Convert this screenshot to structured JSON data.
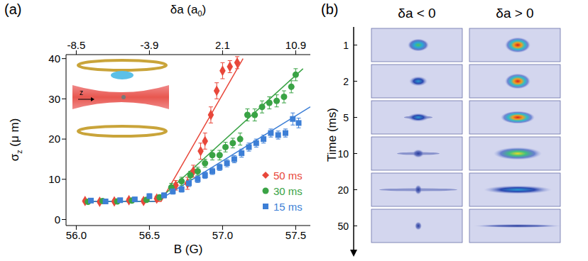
{
  "chart_data": {
    "type": "scatter",
    "panel_label": "(a)",
    "x_label": "B (G)",
    "y_label": [
      "σ",
      "z",
      " (μ m)"
    ],
    "x2_label": [
      "δa (a",
      "0",
      ")"
    ],
    "xlim": [
      55.93,
      57.6
    ],
    "xticks": [
      {
        "value": 56,
        "label": "56.0"
      },
      {
        "value": 56.5,
        "label": "56.5"
      },
      {
        "value": 57,
        "label": "57.0"
      },
      {
        "value": 57.5,
        "label": "57.5"
      }
    ],
    "x2lim": [
      55.93,
      57.6
    ],
    "x2ticks": [
      {
        "value": 56,
        "label": "-8.5"
      },
      {
        "value": 56.5,
        "label": "-3.9"
      },
      {
        "value": 57,
        "label": "2.1"
      },
      {
        "value": 57.5,
        "label": "10.9"
      }
    ],
    "ylim": [
      -1.5,
      41
    ],
    "yticks": [
      0,
      10,
      20,
      30,
      40
    ],
    "legend": "lower right",
    "inset_label": "z",
    "series": [
      {
        "name": "50 ms",
        "color": "#e8473a",
        "marker": "diamond",
        "x": [
          56.06,
          56.16,
          56.26,
          56.36,
          56.46,
          56.55,
          56.68,
          56.76,
          56.8,
          56.85,
          56.88,
          56.92,
          56.96,
          57.0,
          57.05,
          57.1
        ],
        "values": [
          4.6,
          4.4,
          4.5,
          4.8,
          4.6,
          5.2,
          8.5,
          9,
          12,
          17,
          19.5,
          26,
          32,
          37,
          38,
          39
        ],
        "errors": [
          0.4,
          0.4,
          0.4,
          0.5,
          0.5,
          0.6,
          1.2,
          1.5,
          1.5,
          2,
          2,
          2,
          2,
          2,
          1.5,
          1.5
        ],
        "fit": {
          "x": [
            56.05,
            56.58,
            57.14
          ],
          "values": [
            4.5,
            4.5,
            40
          ]
        }
      },
      {
        "name": "30 ms",
        "color": "#3aa345",
        "marker": "circle",
        "x": [
          56.08,
          56.18,
          56.28,
          56.38,
          56.48,
          56.57,
          56.65,
          56.72,
          56.78,
          56.83,
          56.88,
          56.93,
          56.98,
          57.02,
          57.07,
          57.12,
          57.17,
          57.22,
          57.27,
          57.32,
          57.37,
          57.42,
          57.47,
          57.5
        ],
        "values": [
          4.4,
          4.6,
          4.5,
          4.7,
          4.9,
          5.5,
          8,
          9.5,
          11,
          12,
          14,
          16,
          16,
          18,
          19,
          20,
          26,
          26,
          28,
          29,
          29.5,
          30.5,
          33,
          36
        ],
        "errors": [
          0.4,
          0.4,
          0.4,
          0.5,
          0.5,
          0.6,
          1,
          1,
          1,
          1,
          1,
          1.2,
          1.2,
          1.2,
          1.2,
          1.5,
          1.5,
          1.5,
          1.5,
          1.5,
          1.5,
          1.5,
          1.5,
          1.5
        ],
        "fit": {
          "x": [
            56.05,
            56.55,
            57.55
          ],
          "values": [
            4.5,
            4.5,
            37.5
          ]
        }
      },
      {
        "name": "15 ms",
        "color": "#3d7fd6",
        "marker": "square",
        "x": [
          56.1,
          56.2,
          56.3,
          56.4,
          56.5,
          56.6,
          56.66,
          56.72,
          56.77,
          56.83,
          56.88,
          56.93,
          56.98,
          57.03,
          57.08,
          57.13,
          57.18,
          57.23,
          57.28,
          57.33,
          57.38,
          57.43,
          57.48,
          57.52
        ],
        "values": [
          4.7,
          4.5,
          4.8,
          5,
          5.8,
          6,
          7,
          7.5,
          9,
          10,
          11,
          12,
          13,
          14,
          15,
          16.5,
          18,
          19,
          20,
          21.5,
          21,
          21.5,
          25,
          24
        ],
        "errors": [
          0.4,
          0.4,
          0.4,
          0.5,
          0.6,
          0.6,
          0.7,
          0.7,
          0.8,
          0.8,
          0.8,
          0.8,
          0.8,
          0.9,
          0.9,
          1,
          1,
          1,
          1,
          1,
          1,
          1,
          1.5,
          1.2
        ],
        "fit": {
          "x": [
            56.05,
            56.55,
            57.6
          ],
          "values": [
            4.5,
            4.5,
            28
          ]
        }
      }
    ]
  },
  "panel_b": {
    "panel_label": "(b)",
    "columns": [
      "δa < 0",
      "δa > 0"
    ],
    "axis_label": "Time (ms)",
    "rows": [
      1,
      2,
      5,
      10,
      20,
      50
    ]
  }
}
